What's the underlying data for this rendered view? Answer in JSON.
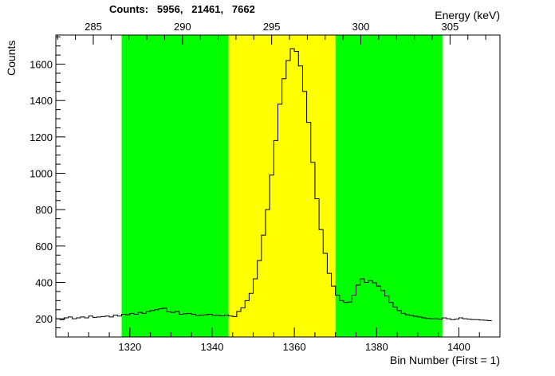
{
  "counts_title": "Counts:   5956,   21461,   7662",
  "chart_data": {
    "type": "histogram",
    "title": "",
    "xlabel": "Bin Number (First = 1)",
    "ylabel": "Counts",
    "x2label": "Energy (keV)",
    "xlim": [
      1302,
      1410
    ],
    "ylim": [
      100,
      1760
    ],
    "bin_start": 1302,
    "bin_width": 1,
    "y_ticks": [
      200,
      400,
      600,
      800,
      1000,
      1200,
      1400,
      1600
    ],
    "x_ticks": [
      1320,
      1340,
      1360,
      1380,
      1400
    ],
    "energy_axis": {
      "xlim": [
        282.9,
        307.8
      ],
      "ticks": [
        285,
        290,
        295,
        300,
        305
      ]
    },
    "regions": [
      {
        "name": "background-left",
        "from": 1318,
        "to": 1344,
        "color": "#00ff00"
      },
      {
        "name": "peak",
        "from": 1344,
        "to": 1370,
        "color": "#ffff00"
      },
      {
        "name": "background-right",
        "from": 1370,
        "to": 1396,
        "color": "#00ff00"
      }
    ],
    "region_counts": [
      5956,
      21461,
      7662
    ],
    "values": [
      200,
      195,
      205,
      210,
      200,
      205,
      210,
      205,
      215,
      208,
      210,
      212,
      215,
      210,
      220,
      215,
      225,
      222,
      230,
      225,
      235,
      230,
      240,
      245,
      250,
      255,
      258,
      238,
      235,
      240,
      225,
      228,
      230,
      225,
      218,
      220,
      222,
      225,
      220,
      218,
      216,
      220,
      215,
      212,
      240,
      260,
      300,
      340,
      420,
      520,
      660,
      800,
      990,
      1180,
      1380,
      1520,
      1620,
      1685,
      1670,
      1590,
      1450,
      1280,
      1060,
      860,
      690,
      560,
      450,
      380,
      330,
      300,
      290,
      292,
      330,
      385,
      420,
      400,
      410,
      398,
      380,
      355,
      325,
      290,
      265,
      245,
      230,
      222,
      218,
      214,
      210,
      205,
      202,
      200,
      200,
      198,
      205,
      200,
      195,
      198,
      205,
      200,
      198,
      196,
      195,
      193,
      192,
      190
    ]
  }
}
